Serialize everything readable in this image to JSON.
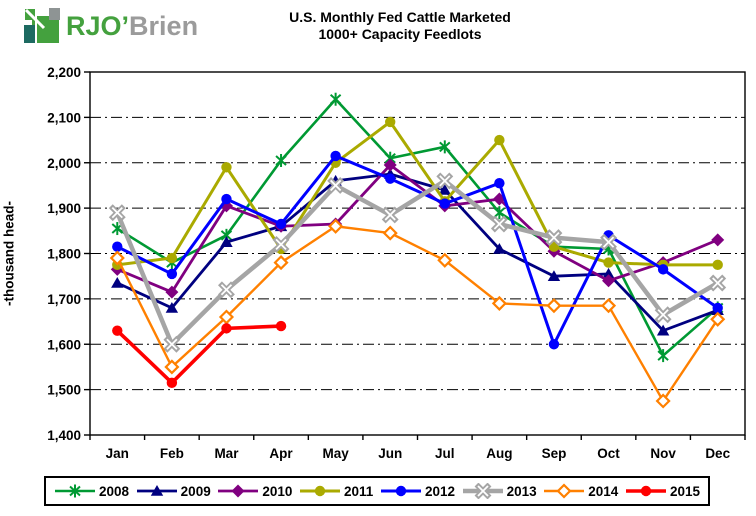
{
  "logo": {
    "text_green": "RJO",
    "apostrophe": "’",
    "text_gray": "Brien",
    "green": "#44A13E",
    "gray": "#9B9B9B",
    "icon_teal": "#1D6A61",
    "icon_gray": "#8E9494"
  },
  "chart_data": {
    "type": "line",
    "title_line1": "U.S. Monthly Fed Cattle Marketed",
    "title_line2": "1000+ Capacity Feedlots",
    "ylabel": "-thousand head-",
    "ylim": [
      1400,
      2200
    ],
    "ytick_step": 100,
    "grid": "horizontal dash-dot",
    "legend_position": "bottom",
    "categories": [
      "Jan",
      "Feb",
      "Mar",
      "Apr",
      "May",
      "Jun",
      "Jul",
      "Aug",
      "Sep",
      "Oct",
      "Nov",
      "Dec"
    ],
    "series": [
      {
        "name": "2008",
        "color": "#009933",
        "marker": "star",
        "line_width": 2.6,
        "values": [
          1855,
          1780,
          1840,
          2005,
          2140,
          2010,
          2035,
          1890,
          1815,
          1810,
          1575,
          1680
        ]
      },
      {
        "name": "2009",
        "color": "#000080",
        "marker": "triangle",
        "line_width": 2.8,
        "values": [
          1735,
          1680,
          1825,
          1860,
          1960,
          1975,
          1940,
          1810,
          1750,
          1755,
          1630,
          1675
        ]
      },
      {
        "name": "2010",
        "color": "#800080",
        "marker": "diamond",
        "line_width": 2.8,
        "values": [
          1765,
          1715,
          1905,
          1860,
          1865,
          1995,
          1905,
          1920,
          1805,
          1740,
          1780,
          1830
        ]
      },
      {
        "name": "2011",
        "color": "#AAAA00",
        "marker": "circle",
        "line_width": 3.0,
        "values": [
          1775,
          1790,
          1990,
          1810,
          2000,
          2090,
          1915,
          2050,
          1815,
          1780,
          1775,
          1775
        ]
      },
      {
        "name": "2012",
        "color": "#0000FF",
        "marker": "circle",
        "line_width": 3.0,
        "values": [
          1815,
          1755,
          1920,
          1865,
          2015,
          1965,
          1910,
          1955,
          1600,
          1840,
          1765,
          1680
        ]
      },
      {
        "name": "2013",
        "color": "#A5A5A5",
        "marker": "x",
        "line_width": 4.5,
        "values": [
          1890,
          1600,
          1720,
          1820,
          1950,
          1885,
          1960,
          1865,
          1835,
          1825,
          1665,
          1735
        ]
      },
      {
        "name": "2014",
        "color": "#FF8000",
        "marker": "open-diamond",
        "line_width": 2.4,
        "values": [
          1790,
          1550,
          1660,
          1780,
          1860,
          1845,
          1785,
          1690,
          1685,
          1685,
          1475,
          1655
        ]
      },
      {
        "name": "2015",
        "color": "#FF0000",
        "marker": "circle",
        "line_width": 3.6,
        "values": [
          1630,
          1515,
          1635,
          1640
        ]
      }
    ]
  }
}
